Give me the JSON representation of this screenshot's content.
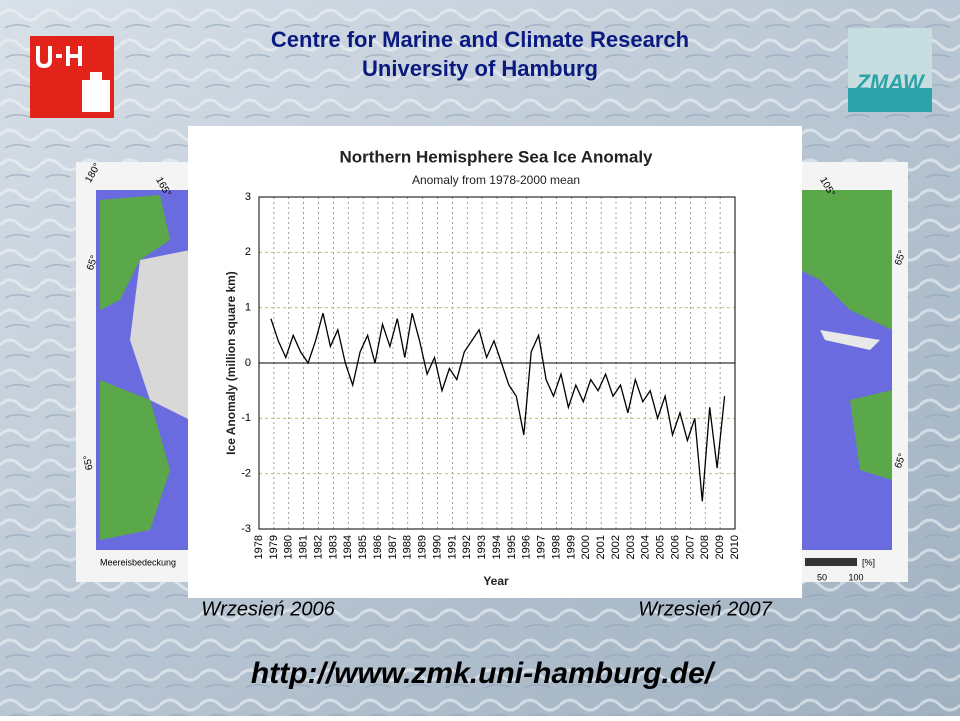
{
  "header": {
    "line1": "Centre for Marine and Climate Research",
    "line2": "University of Hamburg",
    "logo_right": "ZMAW"
  },
  "maps": {
    "left_labels": [
      "180°",
      "165°",
      "65°",
      "65°"
    ],
    "left_caption": "Meereisbedeckung",
    "right_labels": [
      "105°",
      "65°",
      "65°"
    ],
    "scale_unit": "[%]",
    "scale_ticks": [
      "50",
      "100"
    ]
  },
  "captions": {
    "left": "Wrzesień 2006",
    "right": "Wrzesień 2007"
  },
  "url": "http://www.zmk.uni-hamburg.de/",
  "chart_data": {
    "type": "line",
    "title": "Northern Hemisphere Sea Ice Anomaly",
    "subtitle": "Anomaly from 1978-2000 mean",
    "x_label": "Year",
    "y_label": "Ice Anomaly (million square km)",
    "color": "#000000",
    "grid": true,
    "xlim": [
      1978,
      2010
    ],
    "xticks": [
      1978,
      1979,
      1980,
      1981,
      1982,
      1983,
      1984,
      1985,
      1986,
      1987,
      1988,
      1989,
      1990,
      1991,
      1992,
      1993,
      1994,
      1995,
      1996,
      1997,
      1998,
      1999,
      2000,
      2001,
      2002,
      2003,
      2004,
      2005,
      2006,
      2007,
      2008,
      2009,
      2010
    ],
    "ylim": [
      -3,
      3
    ],
    "yticks": [
      -3,
      -2,
      -1,
      0,
      1,
      2,
      3
    ],
    "x": [
      1978.8,
      1979.3,
      1979.8,
      1980.3,
      1980.8,
      1981.3,
      1981.8,
      1982.3,
      1982.8,
      1983.3,
      1983.8,
      1984.3,
      1984.8,
      1985.3,
      1985.8,
      1986.3,
      1986.8,
      1987.3,
      1987.8,
      1988.3,
      1988.8,
      1989.3,
      1989.8,
      1990.3,
      1990.8,
      1991.3,
      1991.8,
      1992.3,
      1992.8,
      1993.3,
      1993.8,
      1994.3,
      1994.8,
      1995.3,
      1995.8,
      1996.3,
      1996.8,
      1997.3,
      1997.8,
      1998.3,
      1998.8,
      1999.3,
      1999.8,
      2000.3,
      2000.8,
      2001.3,
      2001.8,
      2002.3,
      2002.8,
      2003.3,
      2003.8,
      2004.3,
      2004.8,
      2005.3,
      2005.8,
      2006.3,
      2006.8,
      2007.3,
      2007.8,
      2008.3,
      2008.8,
      2009.3
    ],
    "values": [
      0.8,
      0.4,
      0.1,
      0.5,
      0.2,
      0.0,
      0.4,
      0.9,
      0.3,
      0.6,
      0.0,
      -0.4,
      0.2,
      0.5,
      0.0,
      0.7,
      0.3,
      0.8,
      0.1,
      0.9,
      0.4,
      -0.2,
      0.1,
      -0.5,
      -0.1,
      -0.3,
      0.2,
      0.4,
      0.6,
      0.1,
      0.4,
      0.0,
      -0.4,
      -0.6,
      -1.3,
      0.2,
      0.5,
      -0.3,
      -0.6,
      -0.2,
      -0.8,
      -0.4,
      -0.7,
      -0.3,
      -0.5,
      -0.2,
      -0.6,
      -0.4,
      -0.9,
      -0.3,
      -0.7,
      -0.5,
      -1.0,
      -0.6,
      -1.3,
      -0.9,
      -1.4,
      -1.0,
      -2.5,
      -0.8,
      -1.9,
      -0.6
    ]
  }
}
